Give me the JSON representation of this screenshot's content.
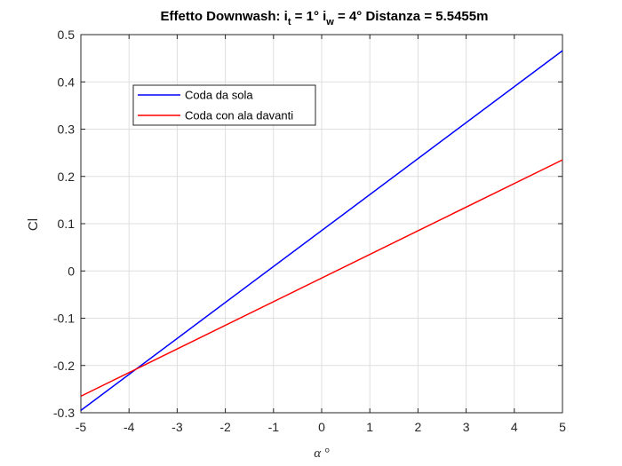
{
  "chart_data": {
    "type": "line",
    "title": {
      "prefix": "Effetto Downwash: i",
      "sub1": "t",
      "mid1": " = 1° i",
      "sub2": "w",
      "suffix": " = 4° Distanza = 5.5455m"
    },
    "xlabel": "α °",
    "ylabel": "Cl",
    "xlim": [
      -5,
      5
    ],
    "ylim": [
      -0.3,
      0.5
    ],
    "xticks": [
      -5,
      -4,
      -3,
      -2,
      -1,
      0,
      1,
      2,
      3,
      4,
      5
    ],
    "yticks": [
      -0.3,
      -0.2,
      -0.1,
      0,
      0.1,
      0.2,
      0.3,
      0.4,
      0.5
    ],
    "xtick_labels": [
      "-5",
      "-4",
      "-3",
      "-2",
      "-1",
      "0",
      "1",
      "2",
      "3",
      "4",
      "5"
    ],
    "ytick_labels": [
      "-0.3",
      "-0.2",
      "-0.1",
      "0",
      "0.1",
      "0.2",
      "0.3",
      "0.4",
      "0.5"
    ],
    "grid": true,
    "legend_placement": "upper-left-inside",
    "series": [
      {
        "name": "Coda da sola",
        "color": "#0000ff",
        "x": [
          -5,
          5
        ],
        "y": [
          -0.295,
          0.466
        ]
      },
      {
        "name": "Coda con ala davanti",
        "color": "#ff0000",
        "x": [
          -5,
          5
        ],
        "y": [
          -0.265,
          0.235
        ]
      }
    ]
  }
}
